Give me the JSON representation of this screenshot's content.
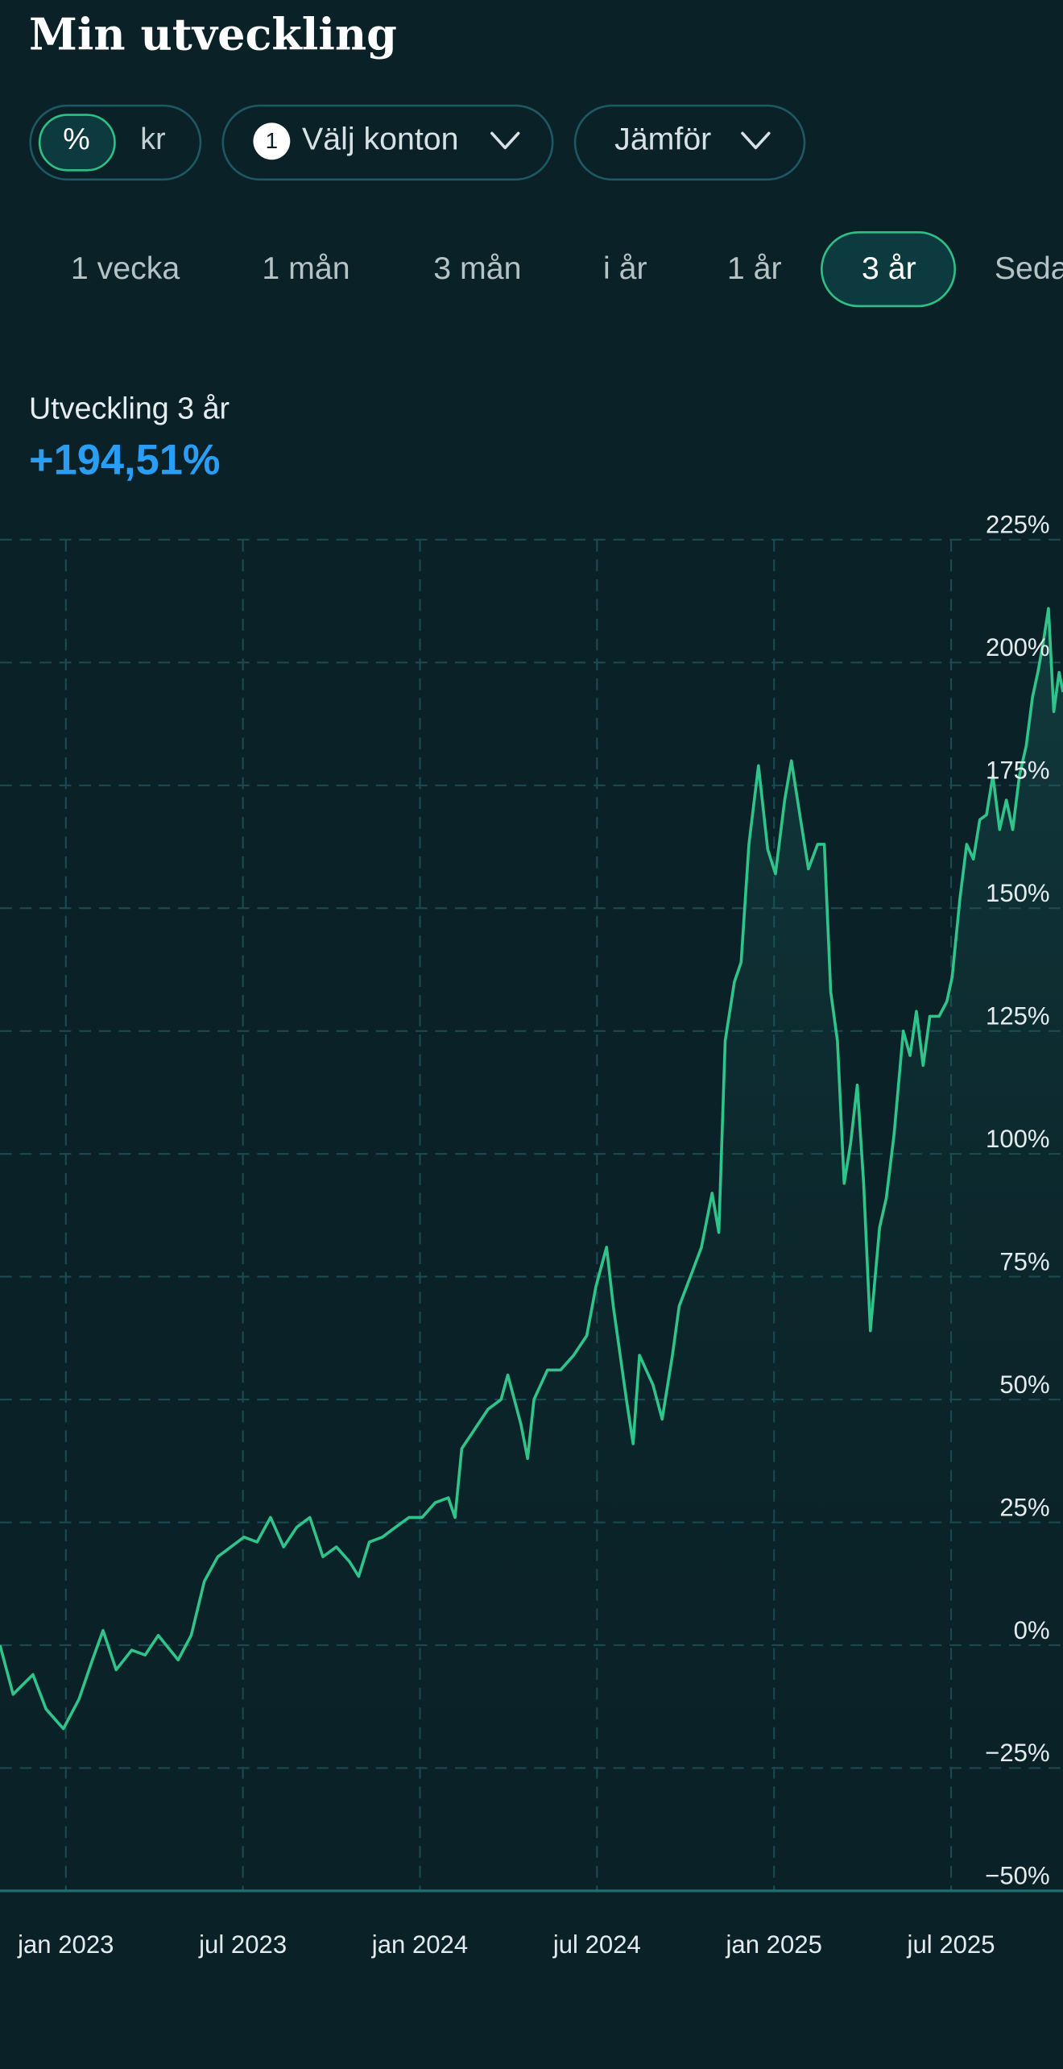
{
  "header": {
    "title": "Min utveckling"
  },
  "toggle": {
    "options": [
      "%",
      "kr"
    ]
  },
  "filters": {
    "account_count": "1",
    "accounts": "Välj konton",
    "compare": "Jämför"
  },
  "periods": [
    "1 vecka",
    "1 mån",
    "3 mån",
    "i år",
    "1 år",
    "3 år",
    "Seda"
  ],
  "summary": {
    "label": "Utveckling 3 år",
    "value": "+194,51%"
  },
  "chart_data": {
    "type": "line",
    "x": [
      2022.814,
      2022.851,
      2022.907,
      2022.944,
      2022.993,
      2023.037,
      2023.075,
      2023.105,
      2023.142,
      2023.186,
      2023.224,
      2023.261,
      2023.317,
      2023.354,
      2023.391,
      2023.429,
      2023.466,
      2023.503,
      2023.54,
      2023.578,
      2023.615,
      2023.652,
      2023.689,
      2023.726,
      2023.764,
      2023.801,
      2023.827,
      2023.857,
      2023.894,
      2023.931,
      2023.969,
      2024.006,
      2024.043,
      2024.08,
      2024.099,
      2024.118,
      2024.155,
      2024.192,
      2024.229,
      2024.248,
      2024.285,
      2024.304,
      2024.322,
      2024.36,
      2024.397,
      2024.434,
      2024.471,
      2024.497,
      2024.527,
      2024.546,
      2024.583,
      2024.602,
      2024.62,
      2024.658,
      2024.684,
      2024.713,
      2024.732,
      2024.769,
      2024.795,
      2024.825,
      2024.844,
      2024.862,
      2024.888,
      2024.907,
      2024.929,
      2024.956,
      2024.982,
      2025.004,
      2025.03,
      2025.049,
      2025.075,
      2025.097,
      2025.123,
      2025.142,
      2025.16,
      2025.179,
      2025.198,
      2025.216,
      2025.235,
      2025.253,
      2025.272,
      2025.298,
      2025.317,
      2025.339,
      2025.365,
      2025.384,
      2025.402,
      2025.421,
      2025.44,
      2025.466,
      2025.488,
      2025.503,
      2025.525,
      2025.544,
      2025.563,
      2025.581,
      2025.6,
      2025.618,
      2025.637,
      2025.656,
      2025.674,
      2025.693,
      2025.712,
      2025.73,
      2025.745,
      2025.76,
      2025.775,
      2025.79,
      2025.805,
      2025.816
    ],
    "series": [
      {
        "color": "#2fc58a",
        "values": [
          0,
          -10,
          -6,
          -13,
          -17,
          -11,
          -3,
          3,
          -5,
          -1,
          -2,
          2,
          -3,
          2,
          13,
          18,
          20,
          22,
          21,
          26,
          20,
          24,
          26,
          18,
          20,
          17,
          14,
          21,
          22,
          24,
          26,
          26,
          29,
          30,
          26,
          40,
          44,
          48,
          50,
          55,
          45,
          38,
          50,
          56,
          56,
          59,
          63,
          73,
          81,
          69,
          50,
          41,
          59,
          53,
          46,
          59,
          69,
          76,
          81,
          92,
          84,
          123,
          135,
          139,
          163,
          179,
          162,
          157,
          172,
          180,
          168,
          158,
          163,
          163,
          133,
          123,
          94,
          102,
          114,
          94,
          64,
          85,
          91,
          104,
          125,
          120,
          129,
          118,
          128,
          128,
          131,
          136,
          152,
          163,
          160,
          168,
          169,
          177,
          166,
          172,
          166,
          177,
          183,
          193,
          198,
          204,
          211,
          190,
          198,
          194
        ]
      }
    ],
    "xlim": [
      2022.814,
      2025.816
    ],
    "xticks": [
      {
        "value": 2023,
        "label": "jan 2023"
      },
      {
        "value": 2023.5,
        "label": "jul 2023"
      },
      {
        "value": 2024,
        "label": "jan 2024"
      },
      {
        "value": 2024.5,
        "label": "jul 2024"
      },
      {
        "value": 2025,
        "label": "jan 2025"
      },
      {
        "value": 2025.5,
        "label": "jul 2025"
      }
    ],
    "ylim": [
      -50,
      225
    ],
    "yticks": [
      {
        "value": -50,
        "label": "−50%"
      },
      {
        "value": -25,
        "label": "−25%"
      },
      {
        "value": 0,
        "label": "0%"
      },
      {
        "value": 25,
        "label": "25%"
      },
      {
        "value": 50,
        "label": "50%"
      },
      {
        "value": 75,
        "label": "75%"
      },
      {
        "value": 100,
        "label": "100%"
      },
      {
        "value": 125,
        "label": "125%"
      },
      {
        "value": 150,
        "label": "150%"
      },
      {
        "value": 175,
        "label": "175%"
      },
      {
        "value": 200,
        "label": "200%"
      },
      {
        "value": 225,
        "label": "225%"
      }
    ],
    "grid": true
  }
}
